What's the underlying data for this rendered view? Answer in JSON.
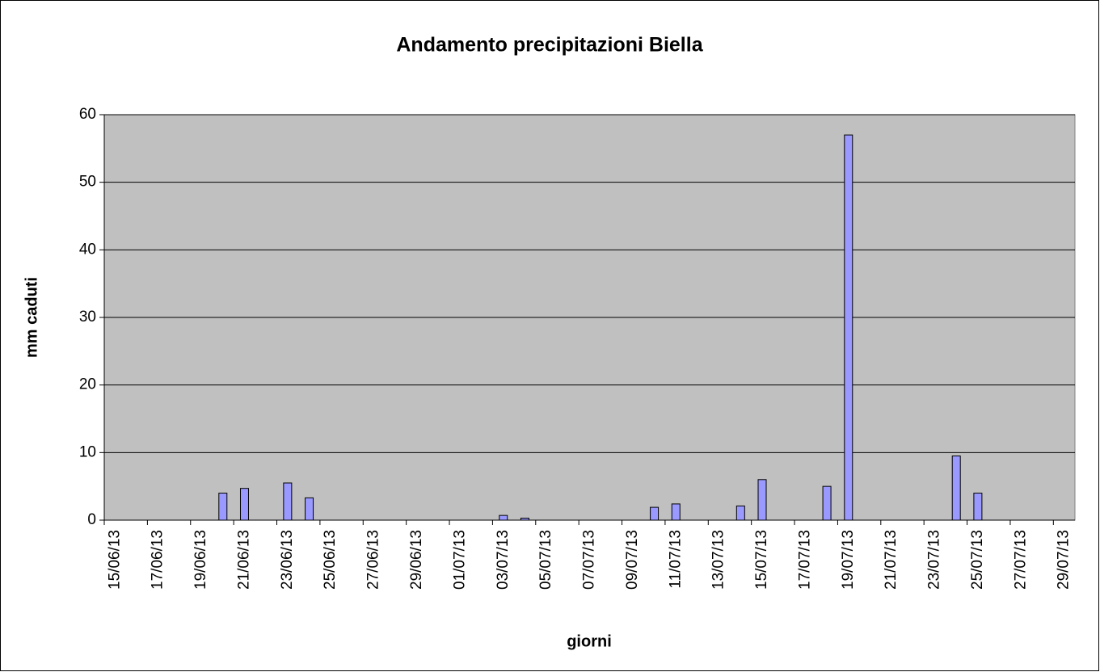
{
  "chart_data": {
    "type": "bar",
    "title": "Andamento precipitazioni Biella",
    "x_label": "giorni",
    "y_label": "mm caduti",
    "categories": [
      "15/06/13",
      null,
      "17/06/13",
      null,
      "19/06/13",
      null,
      "21/06/13",
      null,
      "23/06/13",
      null,
      "25/06/13",
      null,
      "27/06/13",
      null,
      "29/06/13",
      null,
      "01/07/13",
      null,
      "03/07/13",
      null,
      "05/07/13",
      null,
      "07/07/13",
      null,
      "09/07/13",
      null,
      "11/07/13",
      null,
      "13/07/13",
      null,
      "15/07/13",
      null,
      "17/07/13",
      null,
      "19/07/13",
      null,
      "21/07/13",
      null,
      "23/07/13",
      null,
      "25/07/13",
      null,
      "27/07/13",
      null,
      "29/07/13"
    ],
    "values": [
      0,
      0,
      0,
      0,
      0,
      4,
      4.7,
      0,
      5.5,
      3.3,
      0,
      0,
      0,
      0,
      0,
      0,
      0,
      0,
      0.7,
      0.3,
      0,
      0,
      0,
      0,
      0,
      1.9,
      2.4,
      0,
      0,
      2.1,
      6,
      0,
      0,
      5,
      57,
      0,
      0,
      0,
      0,
      9.5,
      4,
      0,
      0,
      0,
      0
    ],
    "color": "#9999ff",
    "ylim": [
      0,
      60
    ],
    "yticks": [
      0,
      10,
      20,
      30,
      40,
      50,
      60
    ],
    "grid": true
  }
}
